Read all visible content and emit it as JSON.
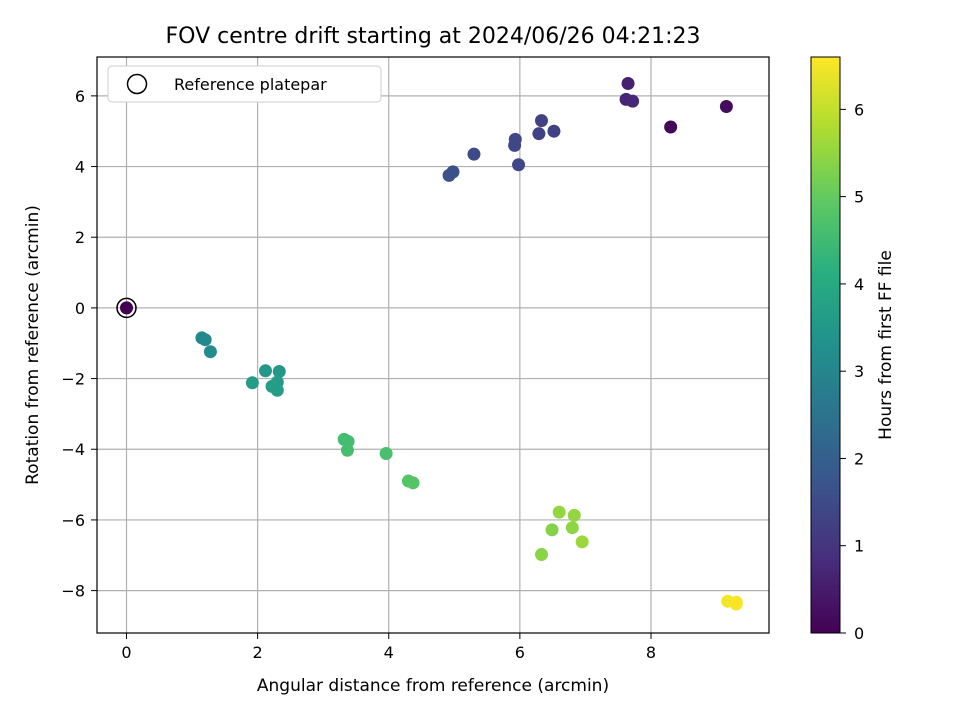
{
  "chart_data": {
    "type": "scatter",
    "title": "FOV centre drift starting at 2024/06/26 04:21:23",
    "xlabel": "Angular distance from reference (arcmin)",
    "ylabel": "Rotation from reference (arcmin)",
    "xlim": [
      -0.45,
      9.8
    ],
    "ylim": [
      -9.2,
      7.1
    ],
    "x_ticks": [
      0,
      2,
      4,
      6,
      8
    ],
    "y_ticks": [
      -8,
      -6,
      -4,
      -2,
      0,
      2,
      4,
      6
    ],
    "grid": true,
    "colormap": "viridis",
    "colorbar": {
      "label": "Hours from first FF file",
      "range": [
        0,
        6.6
      ],
      "ticks": [
        0,
        1,
        2,
        3,
        4,
        5,
        6
      ]
    },
    "legend": {
      "position": "upper-left",
      "entries": [
        {
          "label": "Reference platepar",
          "marker": "open-circle"
        }
      ]
    },
    "reference_point": {
      "x": 0,
      "y": 0,
      "hours": 0
    },
    "points": [
      {
        "x": 0.0,
        "y": 0.0,
        "hours": 0.0
      },
      {
        "x": 8.3,
        "y": 5.12,
        "hours": 0.1
      },
      {
        "x": 9.15,
        "y": 5.7,
        "hours": 0.2
      },
      {
        "x": 7.65,
        "y": 6.35,
        "hours": 0.6
      },
      {
        "x": 7.62,
        "y": 5.9,
        "hours": 0.7
      },
      {
        "x": 7.72,
        "y": 5.85,
        "hours": 0.75
      },
      {
        "x": 6.33,
        "y": 5.3,
        "hours": 1.3
      },
      {
        "x": 6.29,
        "y": 4.93,
        "hours": 1.3
      },
      {
        "x": 6.52,
        "y": 5.0,
        "hours": 1.3
      },
      {
        "x": 5.93,
        "y": 4.77,
        "hours": 1.4
      },
      {
        "x": 5.92,
        "y": 4.6,
        "hours": 1.4
      },
      {
        "x": 5.98,
        "y": 4.05,
        "hours": 1.4
      },
      {
        "x": 5.3,
        "y": 4.35,
        "hours": 1.5
      },
      {
        "x": 4.98,
        "y": 3.85,
        "hours": 1.6
      },
      {
        "x": 4.92,
        "y": 3.75,
        "hours": 1.6
      },
      {
        "x": 1.15,
        "y": -0.85,
        "hours": 3.1
      },
      {
        "x": 1.2,
        "y": -0.9,
        "hours": 3.1
      },
      {
        "x": 1.28,
        "y": -1.24,
        "hours": 3.2
      },
      {
        "x": 2.12,
        "y": -1.78,
        "hours": 3.5
      },
      {
        "x": 2.33,
        "y": -1.8,
        "hours": 3.5
      },
      {
        "x": 1.92,
        "y": -2.12,
        "hours": 3.6
      },
      {
        "x": 2.3,
        "y": -2.1,
        "hours": 3.6
      },
      {
        "x": 2.22,
        "y": -2.22,
        "hours": 3.6
      },
      {
        "x": 2.3,
        "y": -2.33,
        "hours": 3.6
      },
      {
        "x": 3.32,
        "y": -3.72,
        "hours": 4.55
      },
      {
        "x": 3.38,
        "y": -3.78,
        "hours": 4.55
      },
      {
        "x": 3.37,
        "y": -4.03,
        "hours": 4.6
      },
      {
        "x": 3.96,
        "y": -4.12,
        "hours": 4.65
      },
      {
        "x": 4.3,
        "y": -4.9,
        "hours": 4.8
      },
      {
        "x": 4.37,
        "y": -4.95,
        "hours": 4.8
      },
      {
        "x": 6.6,
        "y": -5.78,
        "hours": 5.5
      },
      {
        "x": 6.83,
        "y": -5.87,
        "hours": 5.5
      },
      {
        "x": 6.49,
        "y": -6.28,
        "hours": 5.35
      },
      {
        "x": 6.8,
        "y": -6.22,
        "hours": 5.45
      },
      {
        "x": 6.95,
        "y": -6.62,
        "hours": 5.6
      },
      {
        "x": 6.33,
        "y": -6.98,
        "hours": 5.4
      },
      {
        "x": 9.17,
        "y": -8.3,
        "hours": 6.5
      },
      {
        "x": 9.3,
        "y": -8.33,
        "hours": 6.55
      },
      {
        "x": 9.3,
        "y": -8.38,
        "hours": 6.55
      }
    ]
  }
}
